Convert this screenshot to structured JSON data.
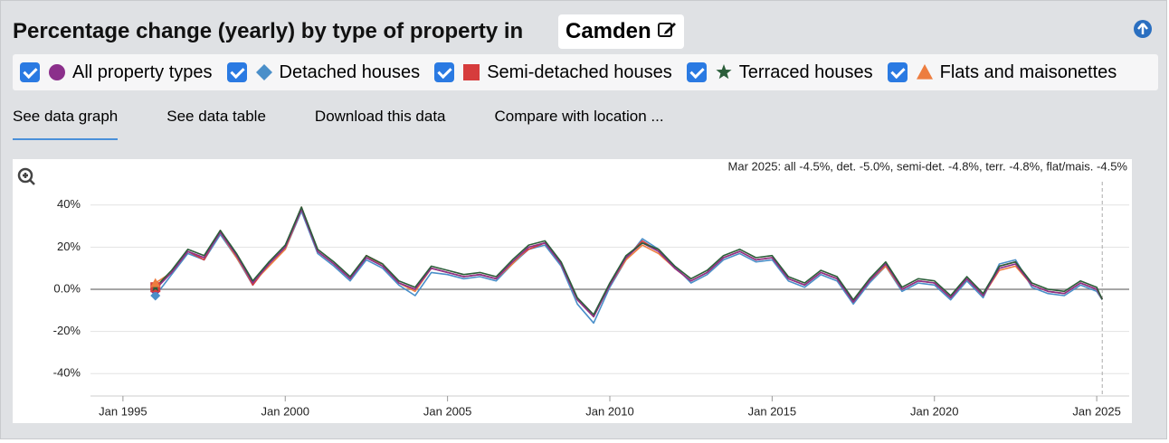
{
  "header": {
    "title": "Percentage change (yearly) by type of property in",
    "location": "Camden"
  },
  "tabs": [
    "See data graph",
    "See data table",
    "Download this data",
    "Compare with location ..."
  ],
  "chart_data": {
    "type": "line",
    "annotation": "Mar 2025: all -4.5%, det. -5.0%, semi-det. -4.8%, terr. -4.8%, flat/mais. -4.5%",
    "x": [
      1996,
      1996.5,
      1997,
      1997.5,
      1998,
      1998.5,
      1999,
      1999.5,
      2000,
      2000.5,
      2001,
      2001.5,
      2002,
      2002.5,
      2003,
      2003.5,
      2004,
      2004.5,
      2005,
      2005.5,
      2006,
      2006.5,
      2007,
      2007.5,
      2008,
      2008.5,
      2009,
      2009.5,
      2010,
      2010.5,
      2011,
      2011.5,
      2012,
      2012.5,
      2013,
      2013.5,
      2014,
      2014.5,
      2015,
      2015.5,
      2016,
      2016.5,
      2017,
      2017.5,
      2018,
      2018.5,
      2019,
      2019.5,
      2020,
      2020.5,
      2021,
      2021.5,
      2022,
      2022.5,
      2023,
      2023.5,
      2024,
      2024.5,
      2025,
      2025.17
    ],
    "xlim": [
      1994,
      2026
    ],
    "xticks": [
      {
        "value": 1995,
        "label": "Jan 1995"
      },
      {
        "value": 2000,
        "label": "Jan 2000"
      },
      {
        "value": 2005,
        "label": "Jan 2005"
      },
      {
        "value": 2010,
        "label": "Jan 2010"
      },
      {
        "value": 2015,
        "label": "Jan 2015"
      },
      {
        "value": 2020,
        "label": "Jan 2020"
      },
      {
        "value": 2025,
        "label": "Jan 2025"
      }
    ],
    "ylim": [
      -50,
      50
    ],
    "yticks": [
      {
        "value": -40,
        "label": "-40%"
      },
      {
        "value": -20,
        "label": "-20%"
      },
      {
        "value": 0,
        "label": "0.0%"
      },
      {
        "value": 20,
        "label": "20%"
      },
      {
        "value": 40,
        "label": "40%"
      }
    ],
    "series": [
      {
        "name": "All property types",
        "color": "#8b2f8b",
        "values": [
          0,
          8,
          18,
          15,
          27,
          16,
          3,
          12,
          20,
          38,
          18,
          12,
          5,
          15,
          11,
          3,
          0,
          10,
          8,
          6,
          7,
          5,
          13,
          20,
          22,
          12,
          -5,
          -13,
          2,
          15,
          22,
          18,
          10,
          4,
          8,
          15,
          18,
          14,
          15,
          5,
          2,
          8,
          5,
          -6,
          4,
          12,
          0,
          4,
          3,
          -4,
          5,
          -3,
          10,
          12,
          2,
          -1,
          -2,
          3,
          0,
          -4.5
        ]
      },
      {
        "name": "Detached houses",
        "color": "#4a8fc9",
        "values": [
          -3,
          7,
          17,
          14,
          26,
          15,
          2,
          13,
          19,
          37,
          17,
          11,
          4,
          14,
          10,
          2,
          -3,
          8,
          7,
          5,
          6,
          4,
          12,
          19,
          21,
          11,
          -7,
          -16,
          1,
          14,
          24,
          19,
          11,
          3,
          7,
          14,
          17,
          13,
          14,
          4,
          1,
          7,
          4,
          -7,
          3,
          11,
          -1,
          3,
          2,
          -5,
          4,
          -4,
          12,
          14,
          1,
          -2,
          -3,
          2,
          -1,
          -5.0
        ]
      },
      {
        "name": "Semi-detached houses",
        "color": "#d63c3c",
        "values": [
          1,
          8,
          18,
          14,
          28,
          16,
          2,
          12,
          20,
          39,
          18,
          12,
          5,
          16,
          12,
          3,
          0,
          10,
          8,
          6,
          7,
          5,
          13,
          19,
          22,
          12,
          -5,
          -13,
          2,
          15,
          23,
          18,
          10,
          4,
          8,
          15,
          18,
          14,
          15,
          5,
          2,
          8,
          5,
          -6,
          4,
          12,
          0,
          4,
          3,
          -4,
          5,
          -3,
          11,
          13,
          2,
          -1,
          -2,
          3,
          0,
          -4.8
        ]
      },
      {
        "name": "Terraced houses",
        "color": "#2b5e3a",
        "values": [
          1,
          9,
          19,
          16,
          28,
          17,
          4,
          13,
          21,
          39,
          19,
          13,
          6,
          16,
          12,
          4,
          1,
          11,
          9,
          7,
          8,
          6,
          14,
          21,
          23,
          13,
          -4,
          -12,
          3,
          16,
          22,
          19,
          11,
          5,
          9,
          16,
          19,
          15,
          16,
          6,
          3,
          9,
          6,
          -5,
          5,
          13,
          1,
          5,
          4,
          -3,
          6,
          -2,
          11,
          13,
          3,
          0,
          -1,
          4,
          1,
          -4.8
        ]
      },
      {
        "name": "Flats and maisonettes",
        "color": "#ed7d3f",
        "values": [
          3,
          8,
          18,
          15,
          27,
          15,
          3,
          11,
          19,
          38,
          18,
          12,
          5,
          16,
          11,
          3,
          -1,
          10,
          8,
          6,
          7,
          5,
          12,
          20,
          22,
          12,
          -5,
          -13,
          2,
          14,
          21,
          17,
          10,
          4,
          8,
          15,
          18,
          14,
          15,
          5,
          2,
          8,
          5,
          -6,
          4,
          11,
          0,
          4,
          3,
          -4,
          5,
          -3,
          9,
          11,
          2,
          -1,
          -2,
          3,
          0,
          -4.5
        ]
      }
    ]
  }
}
